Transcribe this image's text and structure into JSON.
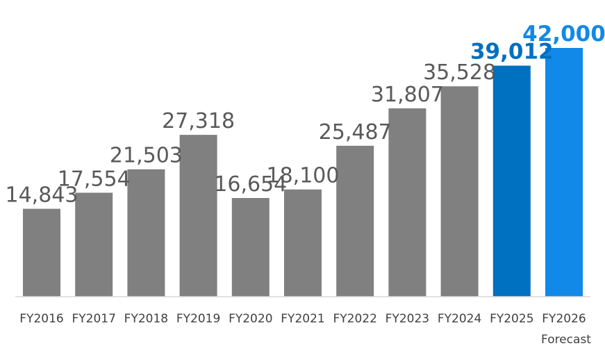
{
  "chart_data": {
    "type": "bar",
    "title": "",
    "xlabel": "",
    "ylabel": "",
    "ylim": [
      0,
      45000
    ],
    "grid": false,
    "legend": "none",
    "categories": [
      "FY2016",
      "FY2017",
      "FY2018",
      "FY2019",
      "FY2020",
      "FY2021",
      "FY2022",
      "FY2023",
      "FY2024",
      "FY2025",
      "FY2026"
    ],
    "values": [
      14843,
      17554,
      21503,
      27318,
      16654,
      18100,
      25487,
      31807,
      35528,
      39012,
      42000
    ],
    "value_labels": [
      "14,843",
      "17,554",
      "21,503",
      "27,318",
      "16,654",
      "18,100",
      "25,487",
      "31,807",
      "35,528",
      "39,012",
      "42,000"
    ],
    "bar_colors": [
      "#808080",
      "#808080",
      "#808080",
      "#808080",
      "#808080",
      "#808080",
      "#808080",
      "#808080",
      "#808080",
      "#0070C0",
      "#1189E8"
    ],
    "label_colors": [
      "#595959",
      "#595959",
      "#595959",
      "#595959",
      "#595959",
      "#595959",
      "#595959",
      "#595959",
      "#595959",
      "#0070C0",
      "#1189E8"
    ],
    "highlighted": [
      false,
      false,
      false,
      false,
      false,
      false,
      false,
      false,
      false,
      true,
      true
    ],
    "annotations": [
      {
        "category": "FY2026",
        "text": "Forecast"
      }
    ]
  }
}
